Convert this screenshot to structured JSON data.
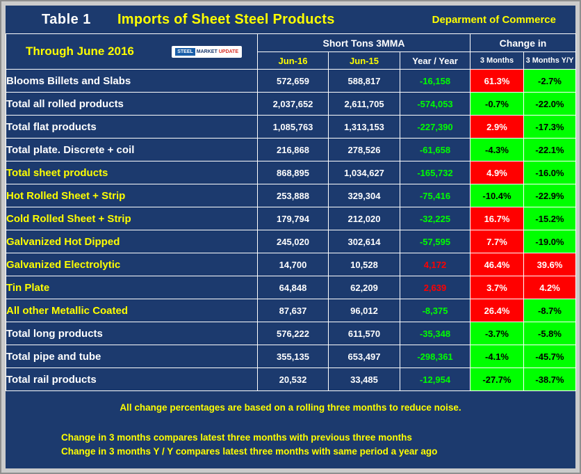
{
  "title_bar": {
    "table_label": "Table 1",
    "source": "Deparment of Commerce"
  },
  "logo": {
    "steel": "STEEL",
    "market": "MARKET",
    "update": "UPDATE"
  },
  "chart_data": {
    "type": "table",
    "title": "Imports of Sheet Steel Products",
    "period": "Through June 2016",
    "group_headers": [
      "Short Tons 3MMA",
      "Change in"
    ],
    "columns": [
      "Jun-16",
      "Jun-15",
      "Year / Year",
      "3 Months",
      "3 Months Y/Y"
    ],
    "rows": [
      {
        "label": "Blooms Billets and Slabs",
        "indent": 0,
        "label_color": "white",
        "jun16": "572,659",
        "jun15": "588,817",
        "yoy": "-16,158",
        "yoy_color": "green",
        "chg_3m": "61.3%",
        "chg_3m_bg": "red",
        "chg_3m_yy": "-2.7%",
        "chg_3m_yy_bg": "green"
      },
      {
        "label": "Total all rolled products",
        "indent": 0,
        "label_color": "white",
        "jun16": "2,037,652",
        "jun15": "2,611,705",
        "yoy": "-574,053",
        "yoy_color": "green",
        "chg_3m": "-0.7%",
        "chg_3m_bg": "green",
        "chg_3m_yy": "-22.0%",
        "chg_3m_yy_bg": "green"
      },
      {
        "label": "Total flat products",
        "indent": 1,
        "label_color": "white",
        "jun16": "1,085,763",
        "jun15": "1,313,153",
        "yoy": "-227,390",
        "yoy_color": "green",
        "chg_3m": "2.9%",
        "chg_3m_bg": "red",
        "chg_3m_yy": "-17.3%",
        "chg_3m_yy_bg": "green"
      },
      {
        "label": "Total plate. Discrete + coil",
        "indent": 2,
        "label_color": "white",
        "jun16": "216,868",
        "jun15": "278,526",
        "yoy": "-61,658",
        "yoy_color": "green",
        "chg_3m": "-4.3%",
        "chg_3m_bg": "green",
        "chg_3m_yy": "-22.1%",
        "chg_3m_yy_bg": "green"
      },
      {
        "label": "Total sheet products",
        "indent": 2,
        "label_color": "yellow",
        "jun16": "868,895",
        "jun15": "1,034,627",
        "yoy": "-165,732",
        "yoy_color": "green",
        "chg_3m": "4.9%",
        "chg_3m_bg": "red",
        "chg_3m_yy": "-16.0%",
        "chg_3m_yy_bg": "green"
      },
      {
        "label": "Hot Rolled Sheet + Strip",
        "indent": 3,
        "label_color": "yellow",
        "jun16": "253,888",
        "jun15": "329,304",
        "yoy": "-75,416",
        "yoy_color": "green",
        "chg_3m": "-10.4%",
        "chg_3m_bg": "green",
        "chg_3m_yy": "-22.9%",
        "chg_3m_yy_bg": "green"
      },
      {
        "label": "Cold Rolled Sheet + Strip",
        "indent": 3,
        "label_color": "yellow",
        "jun16": "179,794",
        "jun15": "212,020",
        "yoy": "-32,225",
        "yoy_color": "green",
        "chg_3m": "16.7%",
        "chg_3m_bg": "red",
        "chg_3m_yy": "-15.2%",
        "chg_3m_yy_bg": "green"
      },
      {
        "label": "Galvanized Hot Dipped",
        "indent": 3,
        "label_color": "yellow",
        "jun16": "245,020",
        "jun15": "302,614",
        "yoy": "-57,595",
        "yoy_color": "green",
        "chg_3m": "7.7%",
        "chg_3m_bg": "red",
        "chg_3m_yy": "-19.0%",
        "chg_3m_yy_bg": "green"
      },
      {
        "label": "Galvanized Electrolytic",
        "indent": 3,
        "label_color": "yellow",
        "jun16": "14,700",
        "jun15": "10,528",
        "yoy": "4,172",
        "yoy_color": "red",
        "chg_3m": "46.4%",
        "chg_3m_bg": "red",
        "chg_3m_yy": "39.6%",
        "chg_3m_yy_bg": "red"
      },
      {
        "label": "Tin Plate",
        "indent": 3,
        "label_color": "yellow",
        "jun16": "64,848",
        "jun15": "62,209",
        "yoy": "2,639",
        "yoy_color": "red",
        "chg_3m": "3.7%",
        "chg_3m_bg": "red",
        "chg_3m_yy": "4.2%",
        "chg_3m_yy_bg": "red"
      },
      {
        "label": "All other Metallic Coated",
        "indent": 3,
        "label_color": "yellow",
        "jun16": "87,637",
        "jun15": "96,012",
        "yoy": "-8,375",
        "yoy_color": "green",
        "chg_3m": "26.4%",
        "chg_3m_bg": "red",
        "chg_3m_yy": "-8.7%",
        "chg_3m_yy_bg": "green"
      },
      {
        "label": "Total long products",
        "indent": 1,
        "label_color": "white",
        "jun16": "576,222",
        "jun15": "611,570",
        "yoy": "-35,348",
        "yoy_color": "green",
        "chg_3m": "-3.7%",
        "chg_3m_bg": "green",
        "chg_3m_yy": "-5.8%",
        "chg_3m_yy_bg": "green"
      },
      {
        "label": "Total pipe and tube",
        "indent": 1,
        "label_color": "white",
        "jun16": "355,135",
        "jun15": "653,497",
        "yoy": "-298,361",
        "yoy_color": "green",
        "chg_3m": "-4.1%",
        "chg_3m_bg": "green",
        "chg_3m_yy": "-45.7%",
        "chg_3m_yy_bg": "green"
      },
      {
        "label": "Total rail products",
        "indent": 1,
        "label_color": "white",
        "jun16": "20,532",
        "jun15": "33,485",
        "yoy": "-12,954",
        "yoy_color": "green",
        "chg_3m": "-27.7%",
        "chg_3m_bg": "green",
        "chg_3m_yy": "-38.7%",
        "chg_3m_yy_bg": "green"
      }
    ]
  },
  "footer": {
    "note_main": "All change percentages are based on a rolling three months to reduce noise.",
    "note_line1": "Change in 3 months compares latest three months with previous three months",
    "note_line2": "Change in 3 months  Y / Y compares latest three months with same period a year ago"
  },
  "colors": {
    "background_navy": "#1C3A6E",
    "frame_gray": "#CBCBCB",
    "highlight_yellow": "#FFFF00",
    "text_white": "#FFFFFF",
    "increase_red": "#FF0000",
    "decrease_green": "#00FF00"
  }
}
